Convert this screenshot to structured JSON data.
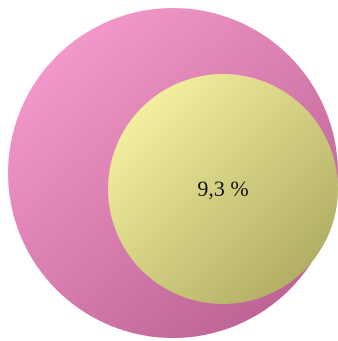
{
  "chart_data": {
    "type": "nested-circle",
    "segments": [
      {
        "value": 100,
        "color": "#e87fb6"
      },
      {
        "value": 9.3,
        "label": "9,3 %",
        "color": "#f2ee96"
      }
    ]
  },
  "colors": {
    "outer_light": "#f39acb",
    "outer_dark": "#b85e90",
    "inner_light": "#f7f3a2",
    "inner_dark": "#a9a65c"
  }
}
